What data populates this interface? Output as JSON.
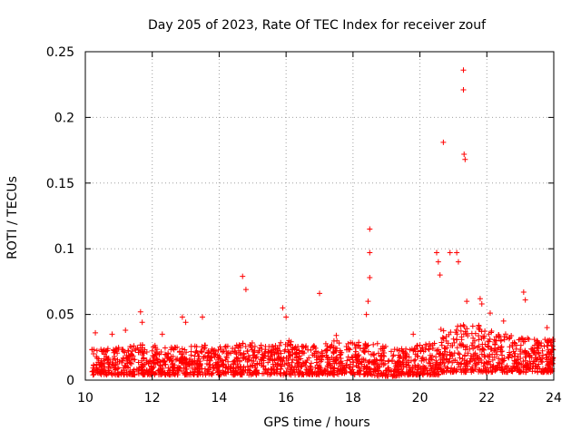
{
  "chart_data": {
    "type": "scatter",
    "title": "Day 205 of 2023, Rate Of TEC Index for receiver zouf",
    "xlabel": "GPS time / hours",
    "ylabel": "ROTI / TECUs",
    "xlim": [
      10,
      24
    ],
    "ylim": [
      0,
      0.25
    ],
    "x_ticks": [
      10,
      12,
      14,
      16,
      18,
      20,
      22,
      24
    ],
    "x_tick_labels": [
      "10",
      "12",
      "14",
      "16",
      "18",
      "20",
      "22",
      "24"
    ],
    "y_ticks": [
      0,
      0.05,
      0.1,
      0.15,
      0.2,
      0.25
    ],
    "y_tick_labels": [
      "0",
      "0.05",
      "0.1",
      "0.15",
      "0.2",
      "0.25"
    ],
    "grid": true,
    "marker": "+",
    "color": "#ff0000",
    "series": [
      {
        "name": "ROTI",
        "x": [
          10.3,
          10.8,
          11.2,
          11.65,
          11.7,
          12.3,
          12.9,
          13.0,
          13.5,
          14.7,
          14.8,
          15.9,
          16.0,
          17.0,
          17.5,
          18.4,
          18.45,
          18.5,
          18.5,
          18.5,
          19.8,
          20.5,
          20.55,
          20.6,
          20.7,
          20.9,
          21.1,
          21.15,
          21.3,
          21.3,
          21.32,
          21.35,
          21.4,
          21.8,
          21.85,
          22.1,
          22.5,
          23.1,
          23.15,
          23.8
        ],
        "y": [
          0.036,
          0.035,
          0.038,
          0.052,
          0.044,
          0.035,
          0.048,
          0.044,
          0.048,
          0.079,
          0.069,
          0.055,
          0.048,
          0.066,
          0.034,
          0.05,
          0.06,
          0.115,
          0.097,
          0.078,
          0.035,
          0.097,
          0.09,
          0.08,
          0.181,
          0.097,
          0.097,
          0.09,
          0.236,
          0.221,
          0.172,
          0.168,
          0.06,
          0.062,
          0.058,
          0.051,
          0.045,
          0.067,
          0.061,
          0.04
        ]
      }
    ],
    "density_profile": {
      "x": [
        10.2,
        10.6,
        11.0,
        11.4,
        11.8,
        12.2,
        12.6,
        13.0,
        13.4,
        13.8,
        14.2,
        14.6,
        15.0,
        15.4,
        15.8,
        16.2,
        16.6,
        17.0,
        17.4,
        17.8,
        18.2,
        18.6,
        19.0,
        19.4,
        19.8,
        20.2,
        20.6,
        21.0,
        21.4,
        21.8,
        22.2,
        22.6,
        23.0,
        23.4,
        23.8
      ],
      "floor": [
        0.004,
        0.004,
        0.004,
        0.004,
        0.004,
        0.004,
        0.004,
        0.004,
        0.004,
        0.004,
        0.004,
        0.004,
        0.004,
        0.004,
        0.004,
        0.004,
        0.004,
        0.004,
        0.004,
        0.004,
        0.004,
        0.003,
        0.003,
        0.004,
        0.004,
        0.004,
        0.006,
        0.006,
        0.006,
        0.006,
        0.006,
        0.006,
        0.006,
        0.006,
        0.006
      ],
      "ceiling": [
        0.026,
        0.025,
        0.026,
        0.028,
        0.027,
        0.025,
        0.026,
        0.027,
        0.027,
        0.026,
        0.027,
        0.029,
        0.027,
        0.027,
        0.031,
        0.029,
        0.027,
        0.028,
        0.03,
        0.029,
        0.028,
        0.03,
        0.024,
        0.024,
        0.028,
        0.029,
        0.04,
        0.042,
        0.042,
        0.038,
        0.036,
        0.034,
        0.032,
        0.031,
        0.032
      ],
      "count_per_bin": 60
    }
  }
}
